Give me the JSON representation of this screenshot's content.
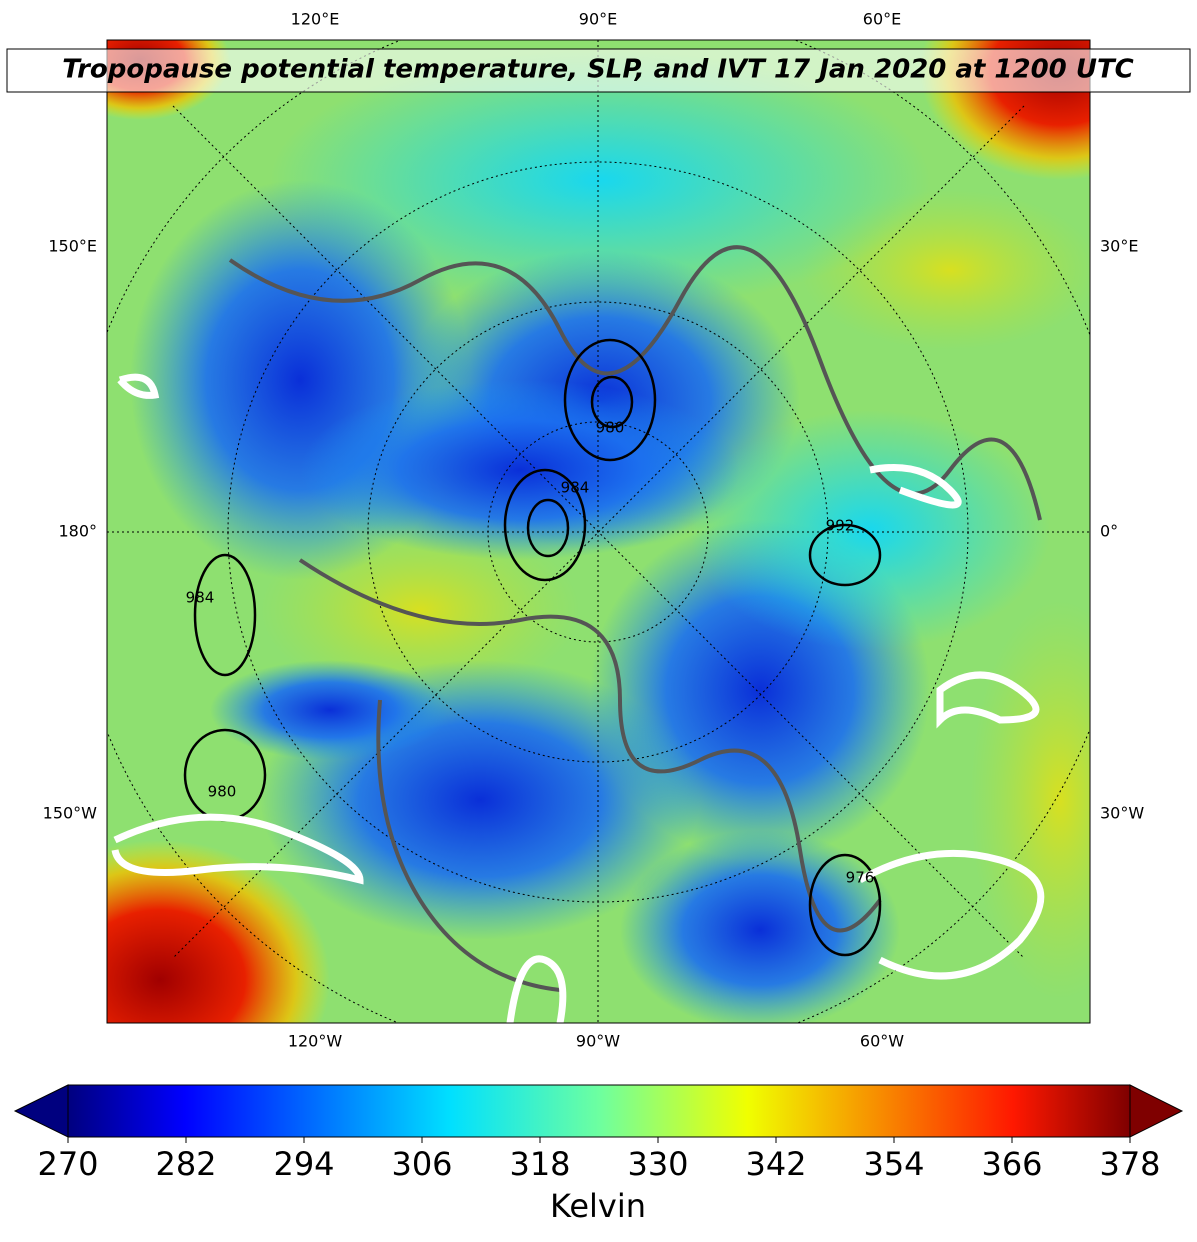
{
  "title": "Tropopause potential temperature, SLP, and IVT 17 Jan 2020 at 1200 UTC",
  "map": {
    "top_labels": [
      "120°E",
      "90°E",
      "60°E"
    ],
    "bottom_labels": [
      "120°W",
      "90°W",
      "60°W"
    ],
    "left_labels": [
      "150°E",
      "180°",
      "150°W"
    ],
    "right_labels": [
      "30°E",
      "0°",
      "30°W"
    ],
    "contour_labels": [
      "984",
      "980",
      "992",
      "984",
      "980",
      "976"
    ]
  },
  "colorbar": {
    "label": "Kelvin",
    "lim": [
      270,
      378
    ],
    "ticks": [
      270,
      282,
      294,
      306,
      318,
      330,
      342,
      354,
      366,
      378
    ]
  }
}
